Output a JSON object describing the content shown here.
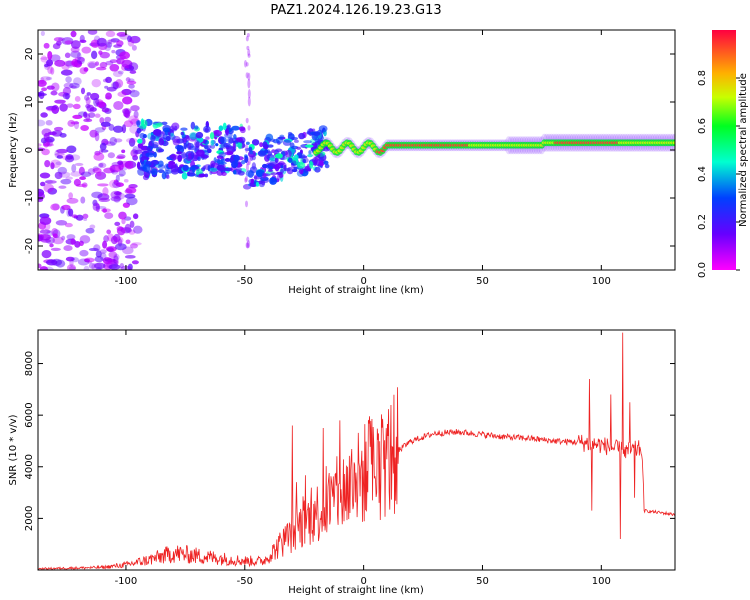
{
  "title": "PAZ1.2024.126.19.23.G13",
  "chart_data": [
    {
      "type": "heatmap",
      "xlabel": "Height of straight line (km)",
      "ylabel": "Frequency (Hz)",
      "xlim": [
        -137,
        131
      ],
      "ylim": [
        -25,
        25
      ],
      "xticks": [
        -100,
        -50,
        0,
        50,
        100
      ],
      "yticks": [
        -20,
        -10,
        0,
        10,
        20
      ],
      "colorbar": {
        "label": "Normalized spectral amplitude",
        "range": [
          0.0,
          1.0
        ],
        "ticks": [
          0.0,
          0.2,
          0.4,
          0.6,
          0.8
        ],
        "colormap": "gist_rainbow_reversed"
      },
      "ridge": {
        "description_regions": [
          {
            "x_from": -137,
            "x_to": -95,
            "character": "scattered noise",
            "amp": 0.1
          },
          {
            "x_from": -95,
            "x_to": -15,
            "character": "patchy near 0 Hz",
            "amp": 0.3
          },
          {
            "x_from": -15,
            "x_to": 131,
            "character": "continuous ridge near 0-2 Hz",
            "amp": 0.9
          }
        ]
      },
      "grid": false
    },
    {
      "type": "line",
      "xlabel": "Height of straight line (km)",
      "ylabel": "SNR (10 * v/v)",
      "xlim": [
        -137,
        131
      ],
      "ylim": [
        0,
        9300
      ],
      "xticks": [
        -100,
        -50,
        0,
        50,
        100
      ],
      "yticks": [
        2000,
        4000,
        6000,
        8000
      ],
      "series_color": "#ee2222",
      "envelope": [
        {
          "x": -137,
          "y": 50
        },
        {
          "x": -110,
          "y": 100
        },
        {
          "x": -100,
          "y": 200
        },
        {
          "x": -90,
          "y": 400
        },
        {
          "x": -80,
          "y": 650
        },
        {
          "x": -70,
          "y": 550
        },
        {
          "x": -60,
          "y": 450
        },
        {
          "x": -50,
          "y": 350
        },
        {
          "x": -42,
          "y": 350
        },
        {
          "x": -35,
          "y": 1000
        },
        {
          "x": -28,
          "y": 1600
        },
        {
          "x": -20,
          "y": 2200
        },
        {
          "x": -12,
          "y": 2800
        },
        {
          "x": -5,
          "y": 3300
        },
        {
          "x": 0,
          "y": 3700
        },
        {
          "x": 10,
          "y": 4300
        },
        {
          "x": 20,
          "y": 5000
        },
        {
          "x": 30,
          "y": 5300
        },
        {
          "x": 40,
          "y": 5350
        },
        {
          "x": 50,
          "y": 5250
        },
        {
          "x": 60,
          "y": 5150
        },
        {
          "x": 70,
          "y": 5100
        },
        {
          "x": 80,
          "y": 5000
        },
        {
          "x": 90,
          "y": 4950
        },
        {
          "x": 100,
          "y": 4850
        },
        {
          "x": 110,
          "y": 4600
        },
        {
          "x": 117,
          "y": 4700
        },
        {
          "x": 118,
          "y": 2300
        },
        {
          "x": 131,
          "y": 2150
        }
      ],
      "spikes": [
        {
          "x": -30,
          "y": 5600
        },
        {
          "x": -17,
          "y": 5500
        },
        {
          "x": -10,
          "y": 5800
        },
        {
          "x": 95,
          "y": 7400
        },
        {
          "x": 96,
          "y": 2300
        },
        {
          "x": 104,
          "y": 6800
        },
        {
          "x": 108,
          "y": 1200
        },
        {
          "x": 109,
          "y": 9200
        },
        {
          "x": 112,
          "y": 6500
        },
        {
          "x": 114,
          "y": 2800
        }
      ],
      "grid": false
    }
  ]
}
